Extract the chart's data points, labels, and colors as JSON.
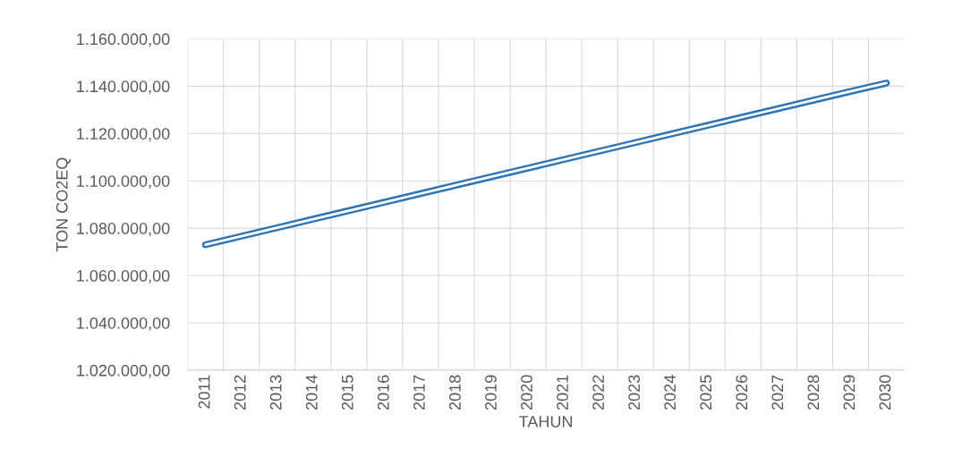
{
  "chart_data": {
    "type": "line",
    "xlabel": "TAHUN",
    "ylabel": "TON CO2EQ",
    "categories": [
      "2011",
      "2012",
      "2013",
      "2014",
      "2015",
      "2016",
      "2017",
      "2018",
      "2019",
      "2020",
      "2021",
      "2022",
      "2023",
      "2024",
      "2025",
      "2026",
      "2027",
      "2028",
      "2029",
      "2030"
    ],
    "series": [
      {
        "color": "#2e75b6",
        "values": [
          1073000,
          1076600,
          1080200,
          1083800,
          1087400,
          1091000,
          1094600,
          1098200,
          1101800,
          1105400,
          1109000,
          1112600,
          1116200,
          1119800,
          1123400,
          1127000,
          1130600,
          1134200,
          1137800,
          1141300
        ]
      }
    ],
    "ylim": [
      1020000,
      1160000
    ],
    "yticks": [
      {
        "value": 1020000,
        "label": "1.020.000,00"
      },
      {
        "value": 1040000,
        "label": "1.040.000,00"
      },
      {
        "value": 1060000,
        "label": "1.060.000,00"
      },
      {
        "value": 1080000,
        "label": "1.080.000,00"
      },
      {
        "value": 1100000,
        "label": "1.100.000,00"
      },
      {
        "value": 1120000,
        "label": "1.120.000,00"
      },
      {
        "value": 1140000,
        "label": "1.140.000,00"
      },
      {
        "value": 1160000,
        "label": "1.160.000,00"
      }
    ],
    "grid": true,
    "marker": "none",
    "line_style": "solid"
  }
}
